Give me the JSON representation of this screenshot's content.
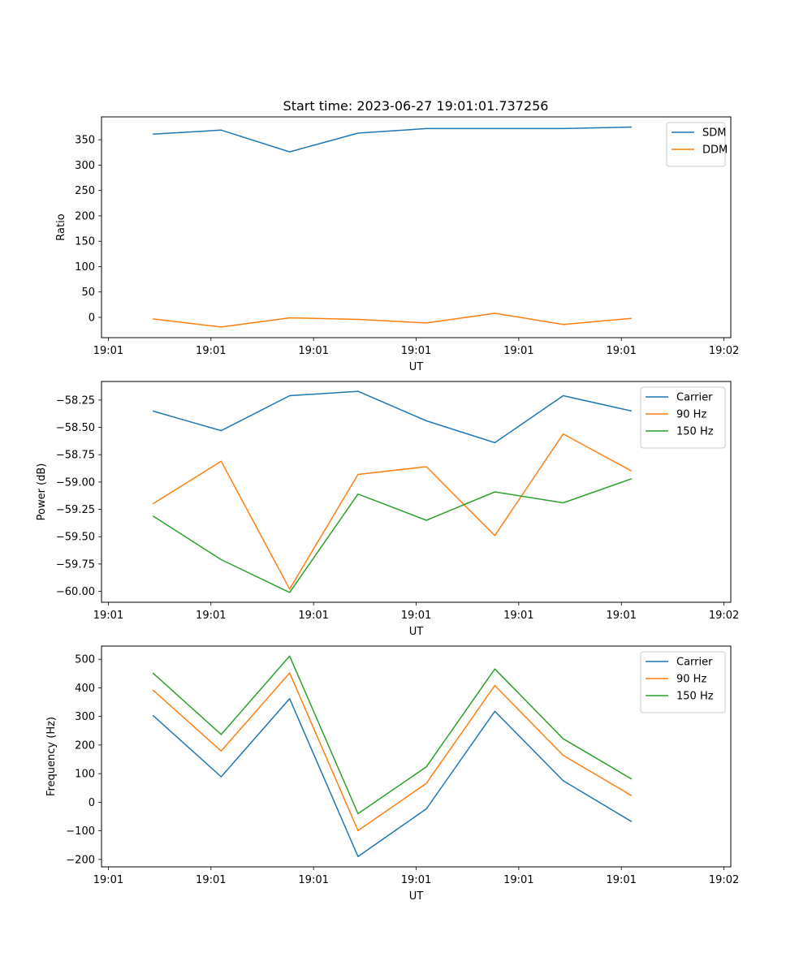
{
  "chart_data": [
    {
      "type": "line",
      "title": "Start time: 2023-06-27 19:01:01.737256",
      "xlabel": "UT",
      "ylabel": "Ratio",
      "xticks": [
        "19:01",
        "19:01",
        "19:01",
        "19:01",
        "19:01",
        "19:01",
        "19:02"
      ],
      "xlim": [
        -0.1,
        9.1
      ],
      "x": [
        0.65,
        1.65,
        2.65,
        3.65,
        4.65,
        5.65,
        6.65,
        7.65
      ],
      "ylim": [
        -40,
        395
      ],
      "yticks": [
        0,
        50,
        100,
        150,
        200,
        250,
        300,
        350
      ],
      "legend": "top-right",
      "grid": false,
      "series": [
        {
          "name": "SDM",
          "color": "#1f77b4",
          "values": [
            361,
            369,
            326,
            363,
            372,
            372,
            372,
            375
          ]
        },
        {
          "name": "DDM",
          "color": "#ff7f0e",
          "values": [
            -3,
            -19,
            -1,
            -4,
            -11,
            8,
            -14,
            -2
          ]
        }
      ]
    },
    {
      "type": "line",
      "title": "",
      "xlabel": "UT",
      "ylabel": "Power (dB)",
      "xticks": [
        "19:01",
        "19:01",
        "19:01",
        "19:01",
        "19:01",
        "19:01",
        "19:02"
      ],
      "xlim": [
        -0.1,
        9.1
      ],
      "x": [
        0.65,
        1.65,
        2.65,
        3.65,
        4.65,
        5.65,
        6.65,
        7.65
      ],
      "ylim": [
        -60.1,
        -58.08
      ],
      "yticks": [
        -58.25,
        -58.5,
        -58.75,
        -59.0,
        -59.25,
        -59.5,
        -59.75,
        -60.0
      ],
      "ytick_labels": [
        "−58.25",
        "−58.50",
        "−58.75",
        "−59.00",
        "−59.25",
        "−59.50",
        "−59.75",
        "−60.00"
      ],
      "legend": "top-right",
      "grid": false,
      "series": [
        {
          "name": "Carrier",
          "color": "#1f77b4",
          "values": [
            -58.35,
            -58.53,
            -58.21,
            -58.17,
            -58.44,
            -58.64,
            -58.21,
            -58.35
          ]
        },
        {
          "name": "90 Hz",
          "color": "#ff7f0e",
          "values": [
            -59.2,
            -58.81,
            -59.98,
            -58.93,
            -58.86,
            -59.49,
            -58.56,
            -58.9
          ]
        },
        {
          "name": "150 Hz",
          "color": "#2ca02c",
          "values": [
            -59.31,
            -59.71,
            -60.01,
            -59.11,
            -59.35,
            -59.09,
            -59.19,
            -58.97
          ]
        }
      ]
    },
    {
      "type": "line",
      "title": "",
      "xlabel": "UT",
      "ylabel": "Frequency (Hz)",
      "xticks": [
        "19:01",
        "19:01",
        "19:01",
        "19:01",
        "19:01",
        "19:01",
        "19:02"
      ],
      "xlim": [
        -0.1,
        9.1
      ],
      "x": [
        0.65,
        1.65,
        2.65,
        3.65,
        4.65,
        5.65,
        6.65,
        7.65
      ],
      "ylim": [
        -226,
        546
      ],
      "yticks": [
        500,
        400,
        300,
        200,
        100,
        0,
        -100,
        -200
      ],
      "ytick_labels": [
        "500",
        "400",
        "300",
        "200",
        "100",
        "0",
        "−100",
        "−200"
      ],
      "legend": "top-right",
      "grid": false,
      "series": [
        {
          "name": "Carrier",
          "color": "#1f77b4",
          "values": [
            304,
            89,
            362,
            -190,
            -23,
            318,
            75,
            -68
          ]
        },
        {
          "name": "90 Hz",
          "color": "#ff7f0e",
          "values": [
            393,
            179,
            452,
            -99,
            66,
            408,
            164,
            23
          ]
        },
        {
          "name": "150 Hz",
          "color": "#2ca02c",
          "values": [
            452,
            237,
            511,
            -40,
            124,
            466,
            222,
            81
          ]
        }
      ]
    }
  ]
}
